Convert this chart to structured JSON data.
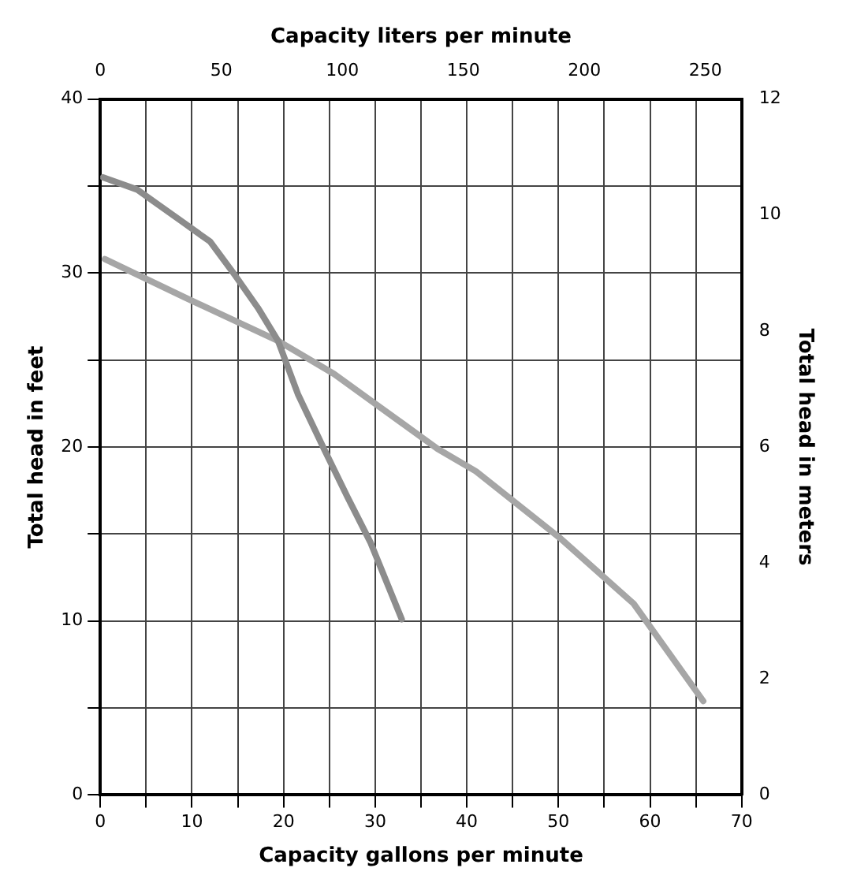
{
  "chart_data": {
    "type": "line",
    "xlabel": "Capacity gallons per minute",
    "ylabel": "Total head in feet",
    "x2label": "Capacity liters per minute",
    "y2label": "Total head in meters",
    "xlim": [
      0,
      70
    ],
    "xticks": [
      0,
      {
        "value": 5,
        "label": null
      },
      10,
      {
        "value": 15,
        "label": null
      },
      20,
      {
        "value": 25,
        "label": null
      },
      30,
      {
        "value": 35,
        "label": null
      },
      40,
      {
        "value": 45,
        "label": null
      },
      50,
      {
        "value": 55,
        "label": null
      },
      60,
      {
        "value": 65,
        "label": null
      },
      70
    ],
    "ylim": [
      0,
      40
    ],
    "yticks": [
      0,
      {
        "value": 5,
        "label": null
      },
      10,
      {
        "value": 15,
        "label": null
      },
      20,
      {
        "value": 25,
        "label": null
      },
      30,
      {
        "value": 35,
        "label": null
      },
      40
    ],
    "x2lim": [
      0,
      265
    ],
    "x2ticks": [
      0,
      50,
      100,
      150,
      200,
      250
    ],
    "y2lim": [
      0,
      12
    ],
    "y2ticks": [
      0,
      2,
      4,
      6,
      8,
      10,
      12
    ],
    "grid": true,
    "marker": "none",
    "series": [
      {
        "color": "#8c8c8c",
        "x": [
          0.3,
          4,
          8.8,
          12,
          14.8,
          17.2,
          19.4,
          21.6,
          24.5,
          27,
          29.5,
          32.9
        ],
        "values": [
          35.5,
          34.8,
          33,
          31.8,
          29.8,
          28,
          26.1,
          23,
          19.8,
          17.1,
          14.5,
          10.1
        ]
      },
      {
        "color": "#a6a6a6",
        "x": [
          0.5,
          9.2,
          19.4,
          25.5,
          36.8,
          41,
          50.1,
          58.2,
          65.8
        ],
        "values": [
          30.8,
          28.6,
          26.1,
          24.2,
          19.9,
          18.6,
          14.8,
          11,
          5.4
        ]
      }
    ]
  }
}
